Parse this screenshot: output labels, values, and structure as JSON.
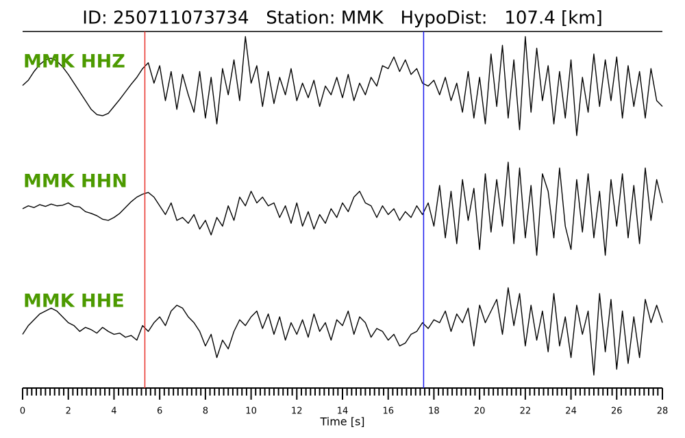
{
  "chart_data": {
    "type": "line",
    "title": "ID: 250711073734   Station: MMK   HypoDist:   107.4 [km]",
    "xlabel": "Time [s]",
    "xlim": [
      0,
      28
    ],
    "xticks": [
      0,
      2,
      4,
      6,
      8,
      10,
      12,
      14,
      16,
      18,
      20,
      22,
      24,
      26,
      28
    ],
    "xminor": 0.2,
    "ylim": [
      -1,
      1
    ],
    "vlines": [
      {
        "x": 5.35,
        "color": "#e8302a"
      },
      {
        "x": 17.55,
        "color": "#1a1aee"
      }
    ],
    "x": [
      0,
      0.25,
      0.5,
      0.75,
      1,
      1.25,
      1.5,
      1.75,
      2,
      2.25,
      2.5,
      2.75,
      3,
      3.25,
      3.5,
      3.75,
      4,
      4.25,
      4.5,
      4.75,
      5,
      5.25,
      5.5,
      5.75,
      6,
      6.25,
      6.5,
      6.75,
      7,
      7.25,
      7.5,
      7.75,
      8,
      8.25,
      8.5,
      8.75,
      9,
      9.25,
      9.5,
      9.75,
      10,
      10.25,
      10.5,
      10.75,
      11,
      11.25,
      11.5,
      11.75,
      12,
      12.25,
      12.5,
      12.75,
      13,
      13.25,
      13.5,
      13.75,
      14,
      14.25,
      14.5,
      14.75,
      15,
      15.25,
      15.5,
      15.75,
      16,
      16.25,
      16.5,
      16.75,
      17,
      17.25,
      17.5,
      17.75,
      18,
      18.25,
      18.5,
      18.75,
      19,
      19.25,
      19.5,
      19.75,
      20,
      20.25,
      20.5,
      20.75,
      21,
      21.25,
      21.5,
      21.75,
      22,
      22.25,
      22.5,
      22.75,
      23,
      23.25,
      23.5,
      23.75,
      24,
      24.25,
      24.5,
      24.75,
      25,
      25.25,
      25.5,
      25.75,
      26,
      26.25,
      26.5,
      26.75,
      27,
      27.25,
      27.5,
      27.75,
      28
    ],
    "series": [
      {
        "name": "MMK HHZ",
        "color": "#000000",
        "label_color": "#4c9a00",
        "values": [
          0.06,
          0.15,
          0.3,
          0.42,
          0.5,
          0.53,
          0.48,
          0.38,
          0.25,
          0.1,
          -0.05,
          -0.2,
          -0.35,
          -0.44,
          -0.46,
          -0.42,
          -0.3,
          -0.18,
          -0.05,
          0.08,
          0.2,
          0.35,
          0.45,
          0.1,
          0.4,
          -0.2,
          0.3,
          -0.35,
          0.25,
          -0.1,
          -0.4,
          0.3,
          -0.5,
          0.2,
          -0.6,
          0.35,
          -0.1,
          0.5,
          -0.2,
          0.9,
          0.1,
          0.4,
          -0.3,
          0.3,
          -0.25,
          0.2,
          -0.1,
          0.35,
          -0.2,
          0.1,
          -0.15,
          0.15,
          -0.3,
          0.05,
          -0.1,
          0.2,
          -0.15,
          0.25,
          -0.2,
          0.1,
          -0.1,
          0.2,
          0.05,
          0.4,
          0.35,
          0.55,
          0.3,
          0.5,
          0.25,
          0.35,
          0.1,
          0.05,
          0.15,
          -0.1,
          0.2,
          -0.2,
          0.1,
          -0.4,
          0.3,
          -0.5,
          0.2,
          -0.6,
          0.6,
          -0.3,
          0.75,
          -0.5,
          0.5,
          -0.7,
          0.9,
          -0.4,
          0.7,
          -0.2,
          0.4,
          -0.6,
          0.3,
          -0.5,
          0.5,
          -0.8,
          0.2,
          -0.4,
          0.6,
          -0.3,
          0.5,
          -0.2,
          0.55,
          -0.5,
          0.4,
          -0.3,
          0.3,
          -0.5,
          0.35,
          -0.2,
          -0.3
        ]
      },
      {
        "name": "MMK HHN",
        "color": "#000000",
        "label_color": "#4c9a00",
        "values": [
          0,
          0.05,
          0.02,
          0.07,
          0.04,
          0.08,
          0.05,
          0.06,
          0.1,
          0.04,
          0.03,
          -0.05,
          -0.08,
          -0.12,
          -0.18,
          -0.2,
          -0.15,
          -0.08,
          0.02,
          0.12,
          0.2,
          0.25,
          0.28,
          0.2,
          0.05,
          -0.1,
          0.1,
          -0.2,
          -0.15,
          -0.25,
          -0.1,
          -0.35,
          -0.2,
          -0.45,
          -0.15,
          -0.3,
          0.05,
          -0.2,
          0.2,
          0.05,
          0.3,
          0.1,
          0.2,
          0.05,
          0.1,
          -0.15,
          0.05,
          -0.25,
          0.1,
          -0.3,
          -0.05,
          -0.35,
          -0.1,
          -0.25,
          0,
          -0.15,
          0.1,
          -0.05,
          0.2,
          0.3,
          0.1,
          0.05,
          -0.15,
          0.05,
          -0.1,
          0,
          -0.2,
          -0.05,
          -0.15,
          0.05,
          -0.1,
          0.1,
          -0.3,
          0.4,
          -0.5,
          0.3,
          -0.6,
          0.5,
          -0.2,
          0.35,
          -0.7,
          0.6,
          -0.4,
          0.5,
          -0.3,
          0.8,
          -0.6,
          0.7,
          -0.5,
          0.4,
          -0.8,
          0.6,
          0.3,
          -0.5,
          0.7,
          -0.3,
          -0.7,
          0.5,
          -0.4,
          0.6,
          -0.5,
          0.3,
          -0.8,
          0.5,
          -0.3,
          0.6,
          -0.5,
          0.4,
          -0.6,
          0.7,
          -0.2,
          0.5,
          0.1
        ]
      },
      {
        "name": "MMK HHE",
        "color": "#000000",
        "label_color": "#4c9a00",
        "values": [
          -0.1,
          0.05,
          0.15,
          0.25,
          0.3,
          0.35,
          0.3,
          0.2,
          0.1,
          0.05,
          -0.05,
          0.02,
          -0.02,
          -0.08,
          0.02,
          -0.05,
          -0.1,
          -0.08,
          -0.15,
          -0.12,
          -0.2,
          0.05,
          -0.05,
          0.1,
          0.2,
          0.05,
          0.3,
          0.4,
          0.35,
          0.2,
          0.1,
          -0.05,
          -0.3,
          -0.1,
          -0.5,
          -0.2,
          -0.35,
          -0.05,
          0.15,
          0.05,
          0.2,
          0.3,
          0,
          0.25,
          -0.1,
          0.2,
          -0.2,
          0.1,
          -0.1,
          0.15,
          -0.15,
          0.25,
          -0.05,
          0.1,
          -0.2,
          0.15,
          0.05,
          0.3,
          -0.1,
          0.2,
          0.1,
          -0.15,
          0,
          -0.05,
          -0.2,
          -0.1,
          -0.3,
          -0.25,
          -0.1,
          -0.05,
          0.1,
          0,
          0.15,
          0.1,
          0.3,
          -0.05,
          0.25,
          0.1,
          0.35,
          -0.3,
          0.4,
          0.1,
          0.3,
          0.5,
          -0.1,
          0.7,
          0.05,
          0.6,
          -0.3,
          0.4,
          -0.2,
          0.3,
          -0.4,
          0.6,
          -0.3,
          0.2,
          -0.5,
          0.4,
          -0.1,
          0.3,
          -0.8,
          0.6,
          -0.4,
          0.5,
          -0.7,
          0.3,
          -0.6,
          0.2,
          -0.5,
          0.5,
          0.1,
          0.4,
          0.1
        ]
      }
    ]
  }
}
